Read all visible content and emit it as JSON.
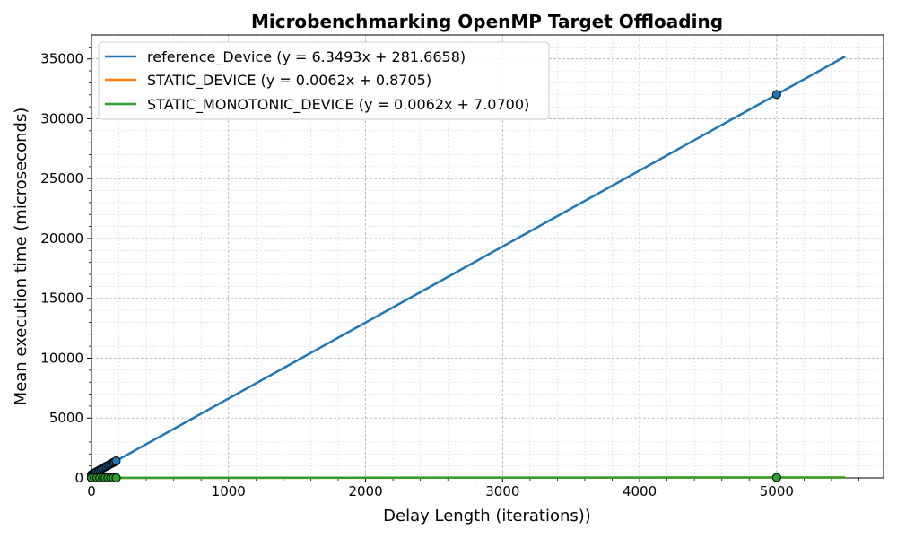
{
  "chart_data": {
    "type": "line",
    "title": "Microbenchmarking OpenMP Target Offloading",
    "xlabel": "Delay Length (iterations))",
    "ylabel": "Mean execution time (microseconds)",
    "xlim": [
      0,
      5780
    ],
    "ylim": [
      0,
      37000
    ],
    "x_ticks": [
      0,
      1000,
      2000,
      3000,
      4000,
      5000
    ],
    "y_ticks": [
      0,
      5000,
      10000,
      15000,
      20000,
      25000,
      30000,
      35000
    ],
    "x_tick_labels": [
      "0",
      "1000",
      "2000",
      "3000",
      "4000",
      "5000"
    ],
    "y_tick_labels": [
      "0",
      "5000",
      "10000",
      "15000",
      "20000",
      "25000",
      "30000",
      "35000"
    ],
    "grid": "major and minor, dashed",
    "legend_position": "top-left",
    "series": [
      {
        "name": "reference_Device",
        "legend_label": "reference_Device (y = 6.3493x + 281.6658)",
        "color": "#1f77b4",
        "fit": {
          "slope": 6.3493,
          "intercept": 281.6658,
          "x_range": [
            0,
            5500
          ]
        },
        "points": {
          "x": [
            0,
            10,
            20,
            30,
            40,
            50,
            60,
            70,
            80,
            90,
            100,
            110,
            120,
            130,
            140,
            150,
            160,
            170,
            180,
            5000
          ],
          "y": [
            282,
            345,
            409,
            472,
            536,
            599,
            663,
            726,
            790,
            853,
            917,
            980,
            1044,
            1107,
            1171,
            1234,
            1298,
            1361,
            1425,
            32028
          ]
        }
      },
      {
        "name": "STATIC_DEVICE",
        "legend_label": "STATIC_DEVICE (y = 0.0062x + 0.8705)",
        "color": "#ff7f0e",
        "fit": {
          "slope": 0.0062,
          "intercept": 0.8705,
          "x_range": [
            0,
            5500
          ]
        },
        "points": {
          "x": [
            0,
            20,
            40,
            60,
            80,
            100,
            120,
            140,
            160,
            180,
            5000
          ],
          "y": [
            1,
            1,
            1,
            1,
            1,
            2,
            2,
            2,
            2,
            2,
            32
          ]
        }
      },
      {
        "name": "STATIC_MONOTONIC_DEVICE",
        "legend_label": "STATIC_MONOTONIC_DEVICE (y = 0.0062x + 7.0700)",
        "color": "#2ca02c",
        "fit": {
          "slope": 0.0062,
          "intercept": 7.07,
          "x_range": [
            0,
            5500
          ]
        },
        "points": {
          "x": [
            0,
            20,
            40,
            60,
            80,
            100,
            120,
            140,
            160,
            180,
            5000
          ],
          "y": [
            7,
            7,
            7,
            7,
            8,
            8,
            8,
            8,
            8,
            8,
            38
          ]
        }
      }
    ]
  }
}
